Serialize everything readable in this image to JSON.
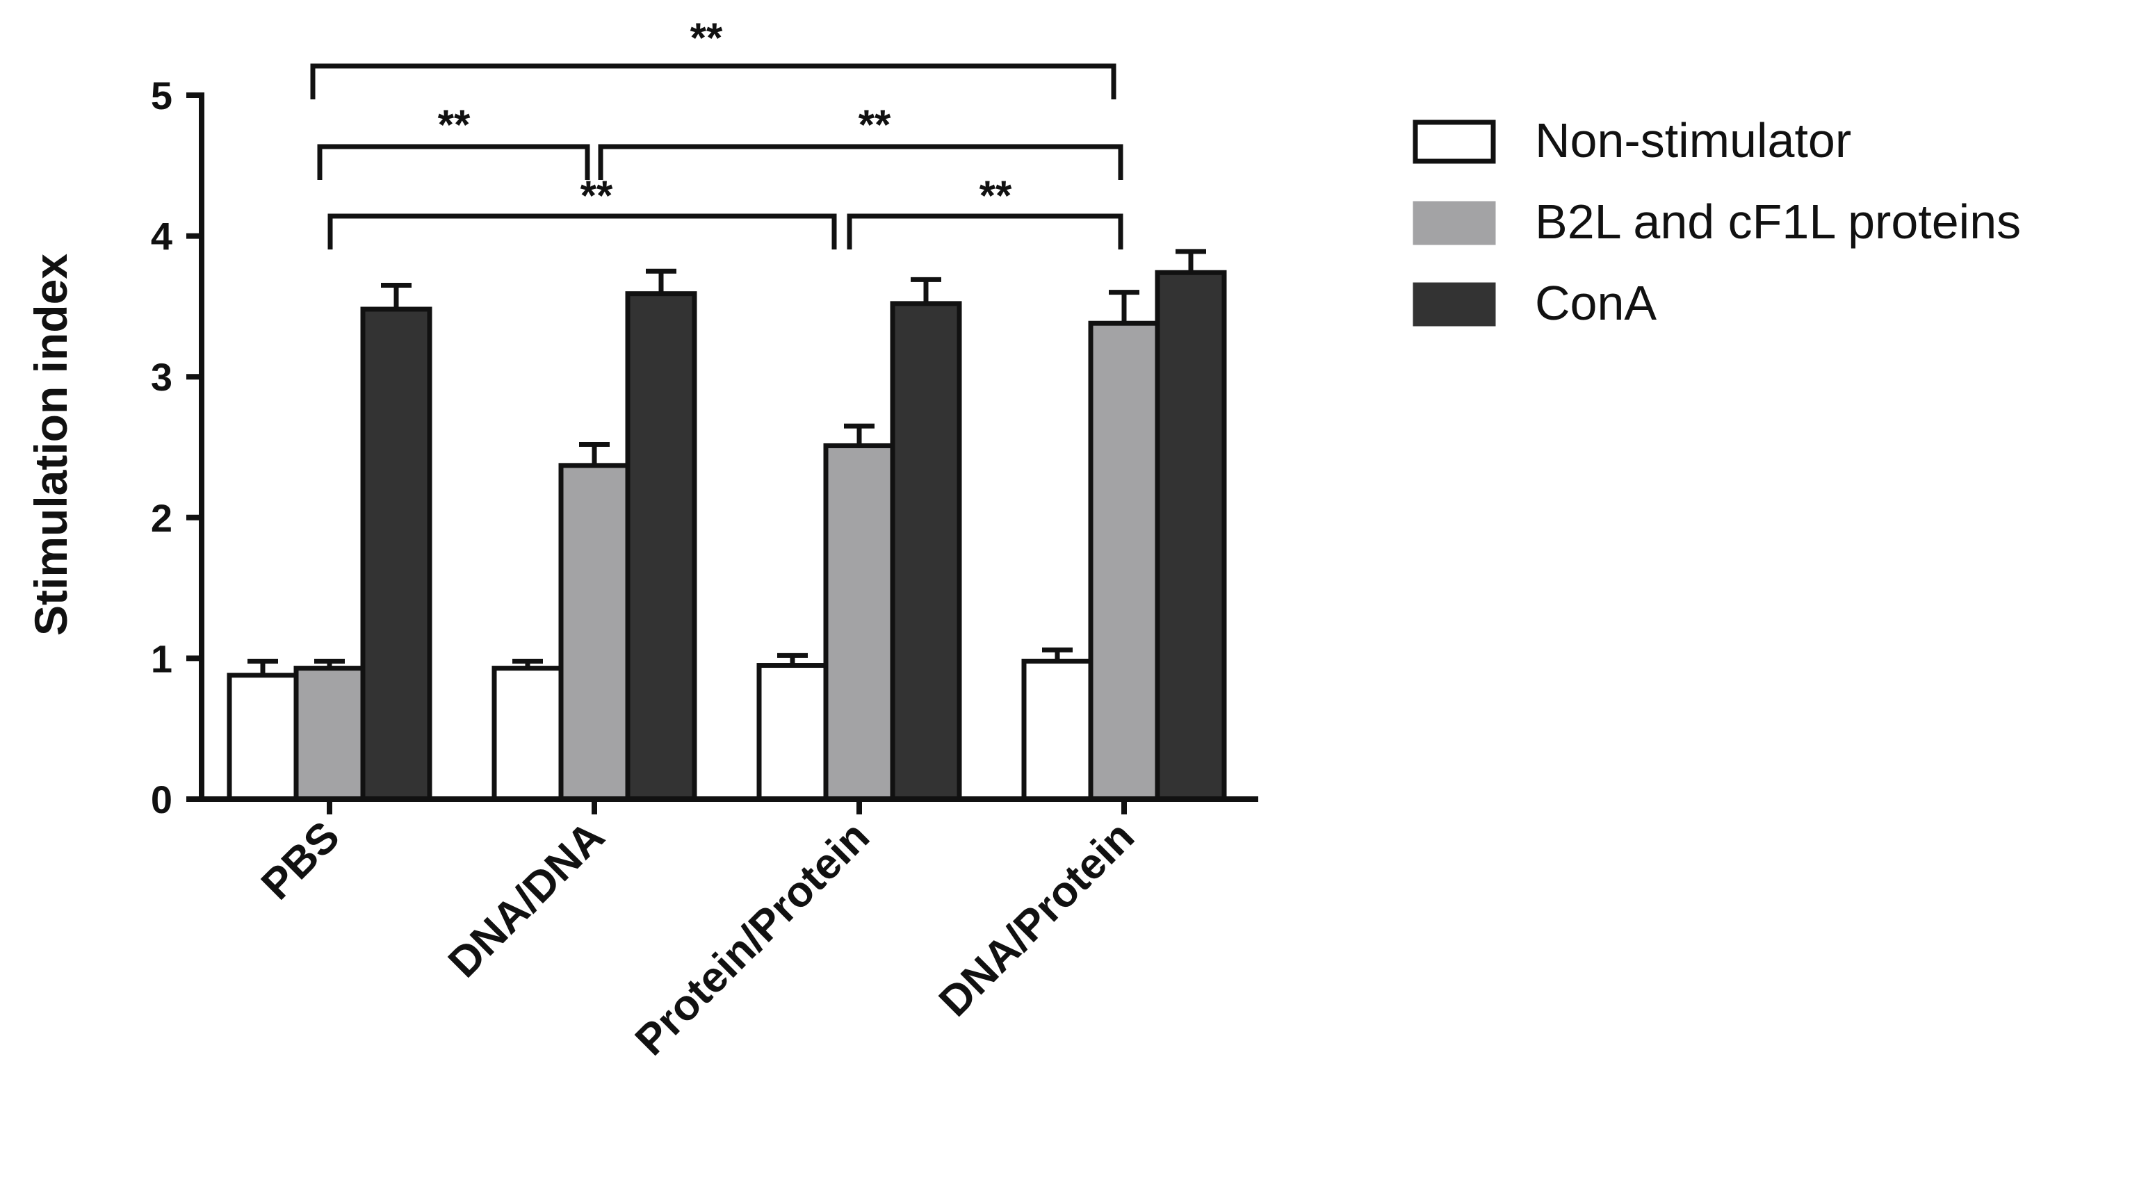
{
  "chart_data": {
    "type": "bar",
    "title": "",
    "xlabel": "",
    "ylabel": "Stimulation index",
    "ylim": [
      0,
      5
    ],
    "yticks": [
      "0",
      "1",
      "2",
      "3",
      "4",
      "5"
    ],
    "categories": [
      "PBS",
      "DNA/DNA",
      "Protein/Protein",
      "DNA/Protein"
    ],
    "series": [
      {
        "name": "Non-stimulator",
        "color": "#ffffff",
        "values": [
          0.88,
          0.93,
          0.95,
          0.98
        ],
        "errors": [
          0.1,
          0.05,
          0.07,
          0.08
        ]
      },
      {
        "name": "B2L and cF1L proteins",
        "color": "#a3a3a5",
        "values": [
          0.93,
          2.37,
          2.51,
          3.38
        ],
        "errors": [
          0.05,
          0.15,
          0.14,
          0.22
        ]
      },
      {
        "name": "ConA",
        "color": "#333333",
        "values": [
          3.48,
          3.59,
          3.52,
          3.74
        ],
        "errors": [
          0.17,
          0.16,
          0.17,
          0.15
        ]
      }
    ],
    "legend_position": "top-right",
    "significance": [
      {
        "from": "PBS",
        "to": "DNA/Protein",
        "label": "**"
      },
      {
        "from": "PBS",
        "to": "DNA/DNA",
        "label": "**"
      },
      {
        "from": "DNA/DNA",
        "to": "DNA/Protein",
        "label": "**"
      },
      {
        "from": "PBS",
        "to": "Protein/Protein",
        "label": "**"
      },
      {
        "from": "Protein/Protein",
        "to": "DNA/Protein",
        "label": "**"
      }
    ]
  }
}
